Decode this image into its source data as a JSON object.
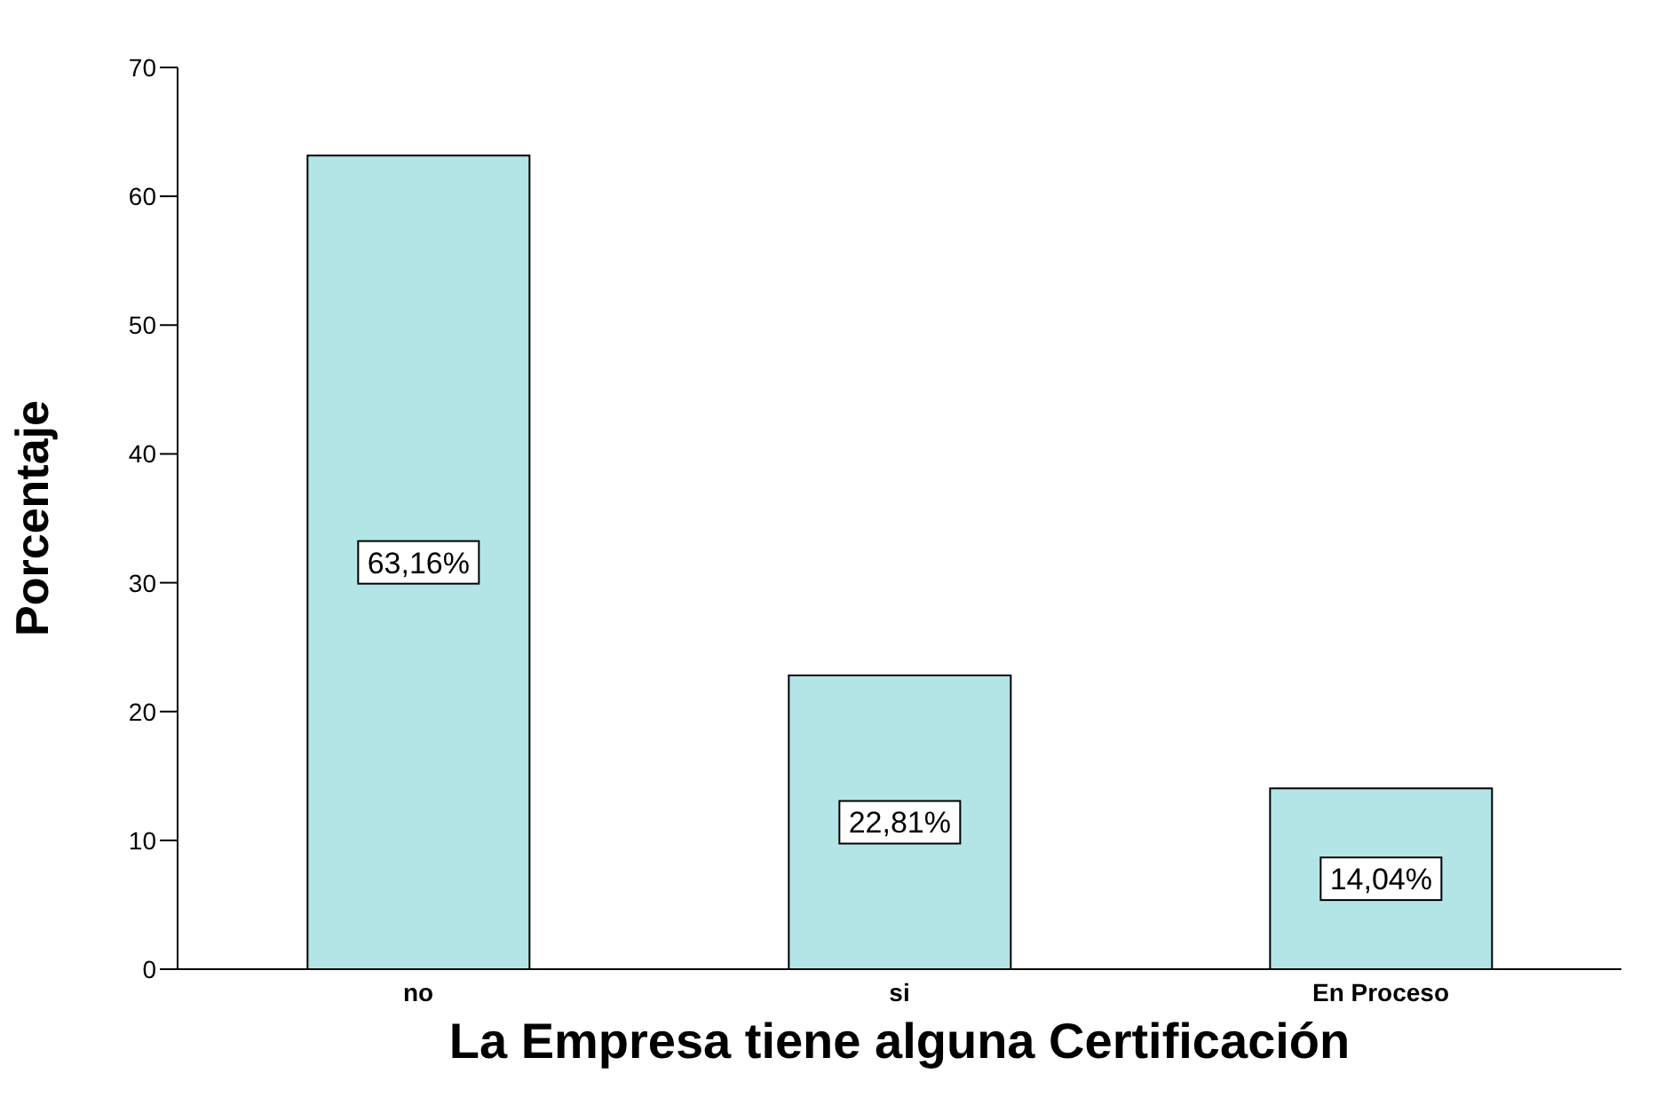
{
  "chart_data": {
    "type": "bar",
    "xlabel": "La Empresa tiene alguna Certificación",
    "ylabel": "Porcentaje",
    "categories": [
      "no",
      "si",
      "En Proceso"
    ],
    "values": [
      63.16,
      22.81,
      14.04
    ],
    "color": "#b3e5e6",
    "value_labels": [
      "63,16%",
      "22,81%",
      "14,04%"
    ],
    "ylim": [
      0,
      70
    ],
    "yticks": [
      0,
      10,
      20,
      30,
      40,
      50,
      60,
      70
    ],
    "grid": false,
    "legend": false
  }
}
